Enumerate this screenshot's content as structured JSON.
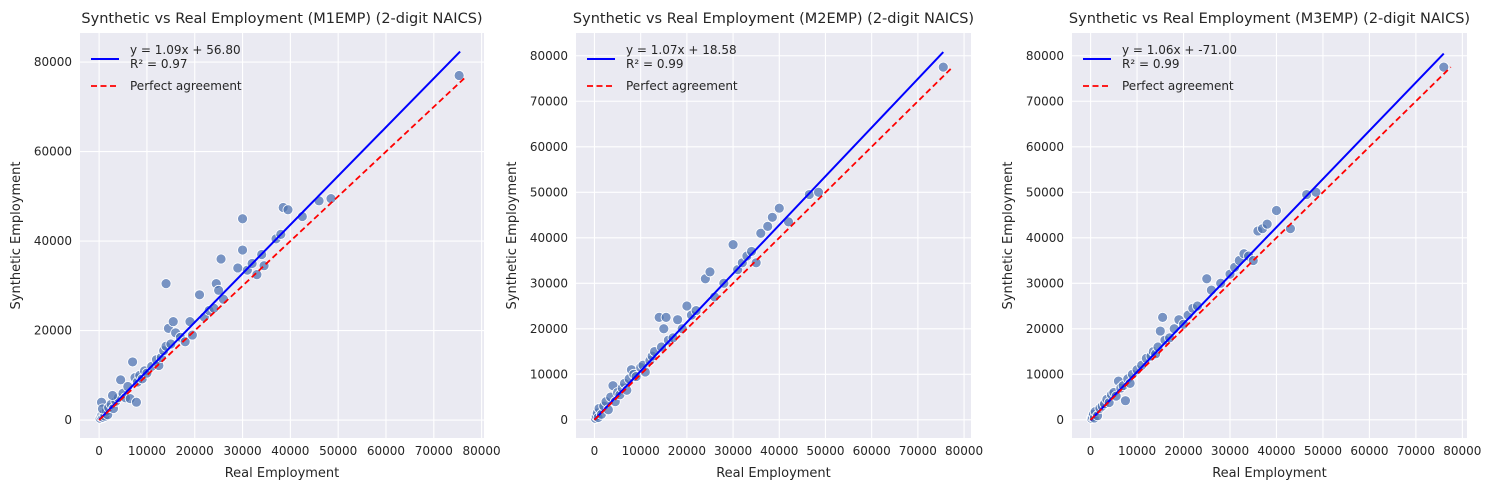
{
  "colors": {
    "plot_bg": "#EAEAF2",
    "grid": "#FFFFFF",
    "points": "#4C72B0",
    "fit_line": "#0000FF",
    "perfect_line": "#FF0000"
  },
  "chart_data": [
    {
      "type": "scatter",
      "title": "Synthetic vs Real Employment (M1EMP) (2-digit NAICS)",
      "xlabel": "Real Employment",
      "ylabel": "Synthetic Employment",
      "xlim": [
        -4000,
        80500
      ],
      "ylim": [
        -4000,
        86500
      ],
      "xticks": [
        0,
        10000,
        20000,
        30000,
        40000,
        50000,
        60000,
        70000,
        80000
      ],
      "yticks": [
        0,
        20000,
        40000,
        60000,
        80000
      ],
      "grid": true,
      "legend_position": "top-left",
      "fit": {
        "slope": 1.09,
        "intercept": 56.8,
        "label": "y = 1.09x + 56.80",
        "r2_label": "R² = 0.97",
        "x_range": [
          0,
          75500
        ]
      },
      "perfect_agreement": {
        "label": "Perfect agreement",
        "x_range": [
          0,
          76500
        ]
      },
      "points": [
        [
          200,
          400
        ],
        [
          400,
          800
        ],
        [
          600,
          1100
        ],
        [
          800,
          600
        ],
        [
          1000,
          1500
        ],
        [
          1200,
          900
        ],
        [
          1500,
          2000
        ],
        [
          1800,
          1200
        ],
        [
          500,
          4000
        ],
        [
          700,
          2500
        ],
        [
          2000,
          2800
        ],
        [
          2500,
          3500
        ],
        [
          3000,
          2600
        ],
        [
          3500,
          4200
        ],
        [
          4000,
          5000
        ],
        [
          2800,
          5500
        ],
        [
          4500,
          9000
        ],
        [
          5000,
          6000
        ],
        [
          5500,
          5000
        ],
        [
          6000,
          7500
        ],
        [
          6500,
          4800
        ],
        [
          7000,
          13000
        ],
        [
          7500,
          9500
        ],
        [
          7800,
          4000
        ],
        [
          8000,
          8500
        ],
        [
          8500,
          10000
        ],
        [
          9000,
          9200
        ],
        [
          9500,
          11000
        ],
        [
          10000,
          10500
        ],
        [
          11000,
          12000
        ],
        [
          12000,
          13500
        ],
        [
          12500,
          12200
        ],
        [
          13000,
          14000
        ],
        [
          13500,
          15500
        ],
        [
          14000,
          16500
        ],
        [
          14500,
          20500
        ],
        [
          15000,
          17000
        ],
        [
          15500,
          22000
        ],
        [
          16000,
          19500
        ],
        [
          14000,
          30500
        ],
        [
          17000,
          18500
        ],
        [
          18000,
          17500
        ],
        [
          19000,
          22000
        ],
        [
          19500,
          19000
        ],
        [
          21000,
          28000
        ],
        [
          22000,
          23000
        ],
        [
          23000,
          24500
        ],
        [
          24000,
          25000
        ],
        [
          24500,
          30500
        ],
        [
          25000,
          29000
        ],
        [
          25500,
          36000
        ],
        [
          26000,
          27000
        ],
        [
          29000,
          34000
        ],
        [
          30000,
          45000
        ],
        [
          30000,
          38000
        ],
        [
          31000,
          33500
        ],
        [
          32000,
          35000
        ],
        [
          33000,
          32500
        ],
        [
          34000,
          37000
        ],
        [
          34500,
          34500
        ],
        [
          37000,
          40500
        ],
        [
          38000,
          41500
        ],
        [
          38500,
          47500
        ],
        [
          39500,
          47000
        ],
        [
          42500,
          45500
        ],
        [
          46000,
          49000
        ],
        [
          48500,
          49500
        ],
        [
          75300,
          77000
        ]
      ]
    },
    {
      "type": "scatter",
      "title": "Synthetic vs Real Employment (M2EMP) (2-digit NAICS)",
      "xlabel": "Real Employment",
      "ylabel": "Synthetic Employment",
      "xlim": [
        -4000,
        81500
      ],
      "ylim": [
        -4000,
        85000
      ],
      "xticks": [
        0,
        10000,
        20000,
        30000,
        40000,
        50000,
        60000,
        70000,
        80000
      ],
      "yticks": [
        0,
        10000,
        20000,
        30000,
        40000,
        50000,
        60000,
        70000,
        80000
      ],
      "grid": true,
      "legend_position": "top-left",
      "fit": {
        "slope": 1.07,
        "intercept": 18.58,
        "label": "y = 1.07x + 18.58",
        "r2_label": "R² = 0.99",
        "x_range": [
          0,
          75500
        ]
      },
      "perfect_agreement": {
        "label": "Perfect agreement",
        "x_range": [
          0,
          77500
        ]
      },
      "points": [
        [
          200,
          300
        ],
        [
          400,
          800
        ],
        [
          600,
          1500
        ],
        [
          800,
          500
        ],
        [
          1000,
          2500
        ],
        [
          1500,
          1200
        ],
        [
          2000,
          3000
        ],
        [
          2500,
          4000
        ],
        [
          3000,
          2200
        ],
        [
          3500,
          5000
        ],
        [
          4000,
          7500
        ],
        [
          4500,
          4000
        ],
        [
          5000,
          6000
        ],
        [
          5500,
          5500
        ],
        [
          6000,
          7000
        ],
        [
          6500,
          8000
        ],
        [
          7000,
          6500
        ],
        [
          7500,
          9000
        ],
        [
          8000,
          11000
        ],
        [
          8500,
          10000
        ],
        [
          9000,
          9500
        ],
        [
          10000,
          11500
        ],
        [
          10500,
          12000
        ],
        [
          11000,
          10500
        ],
        [
          12000,
          13000
        ],
        [
          12500,
          14000
        ],
        [
          13000,
          15000
        ],
        [
          14000,
          22500
        ],
        [
          14500,
          16000
        ],
        [
          15000,
          20000
        ],
        [
          15500,
          22500
        ],
        [
          16000,
          17500
        ],
        [
          17000,
          18000
        ],
        [
          18000,
          22000
        ],
        [
          19000,
          20000
        ],
        [
          20000,
          25000
        ],
        [
          21000,
          23000
        ],
        [
          22000,
          24000
        ],
        [
          24000,
          31000
        ],
        [
          25000,
          32500
        ],
        [
          26000,
          27000
        ],
        [
          28000,
          30000
        ],
        [
          30000,
          38500
        ],
        [
          31000,
          33000
        ],
        [
          32000,
          34500
        ],
        [
          33000,
          36000
        ],
        [
          34000,
          37000
        ],
        [
          35000,
          34500
        ],
        [
          36000,
          41000
        ],
        [
          37500,
          42500
        ],
        [
          38500,
          44500
        ],
        [
          40000,
          46500
        ],
        [
          42000,
          43500
        ],
        [
          46500,
          49500
        ],
        [
          48500,
          50000
        ],
        [
          75500,
          77500
        ]
      ]
    },
    {
      "type": "scatter",
      "title": "Synthetic vs Real Employment (M3EMP) (2-digit NAICS)",
      "xlabel": "Real Employment",
      "ylabel": "Synthetic Employment",
      "xlim": [
        -4000,
        81000
      ],
      "ylim": [
        -4000,
        85000
      ],
      "xticks": [
        0,
        10000,
        20000,
        30000,
        40000,
        50000,
        60000,
        70000,
        80000
      ],
      "yticks": [
        0,
        10000,
        20000,
        30000,
        40000,
        50000,
        60000,
        70000,
        80000
      ],
      "grid": true,
      "legend_position": "top-left",
      "fit": {
        "slope": 1.06,
        "intercept": -71.0,
        "label": "y = 1.06x + -71.00",
        "r2_label": "R² = 0.99",
        "x_range": [
          0,
          76000
        ]
      },
      "perfect_agreement": {
        "label": "Perfect agreement",
        "x_range": [
          0,
          77500
        ]
      },
      "points": [
        [
          200,
          300
        ],
        [
          400,
          600
        ],
        [
          600,
          1200
        ],
        [
          800,
          400
        ],
        [
          1000,
          1800
        ],
        [
          1500,
          900
        ],
        [
          2000,
          2500
        ],
        [
          2500,
          3000
        ],
        [
          3000,
          3500
        ],
        [
          3500,
          4500
        ],
        [
          4000,
          3800
        ],
        [
          4500,
          5500
        ],
        [
          5000,
          6000
        ],
        [
          5500,
          5200
        ],
        [
          6000,
          8500
        ],
        [
          6500,
          7000
        ],
        [
          7000,
          7500
        ],
        [
          7500,
          4200
        ],
        [
          8000,
          9000
        ],
        [
          8500,
          8000
        ],
        [
          9000,
          10000
        ],
        [
          10000,
          11000
        ],
        [
          11000,
          12000
        ],
        [
          12000,
          13500
        ],
        [
          13000,
          14000
        ],
        [
          13500,
          15000
        ],
        [
          14000,
          14500
        ],
        [
          14500,
          16000
        ],
        [
          15000,
          19500
        ],
        [
          15500,
          22500
        ],
        [
          16000,
          17500
        ],
        [
          17000,
          18000
        ],
        [
          18000,
          20000
        ],
        [
          19000,
          22000
        ],
        [
          20000,
          21000
        ],
        [
          21000,
          23000
        ],
        [
          22000,
          24500
        ],
        [
          23000,
          25000
        ],
        [
          25000,
          31000
        ],
        [
          26000,
          28500
        ],
        [
          28000,
          30000
        ],
        [
          30000,
          32000
        ],
        [
          31000,
          33500
        ],
        [
          32000,
          35000
        ],
        [
          33000,
          36500
        ],
        [
          34000,
          36000
        ],
        [
          35000,
          35000
        ],
        [
          36000,
          41500
        ],
        [
          37000,
          42000
        ],
        [
          38000,
          43000
        ],
        [
          40000,
          46000
        ],
        [
          43000,
          42000
        ],
        [
          46500,
          49500
        ],
        [
          48500,
          50000
        ],
        [
          76000,
          77500
        ]
      ]
    }
  ]
}
